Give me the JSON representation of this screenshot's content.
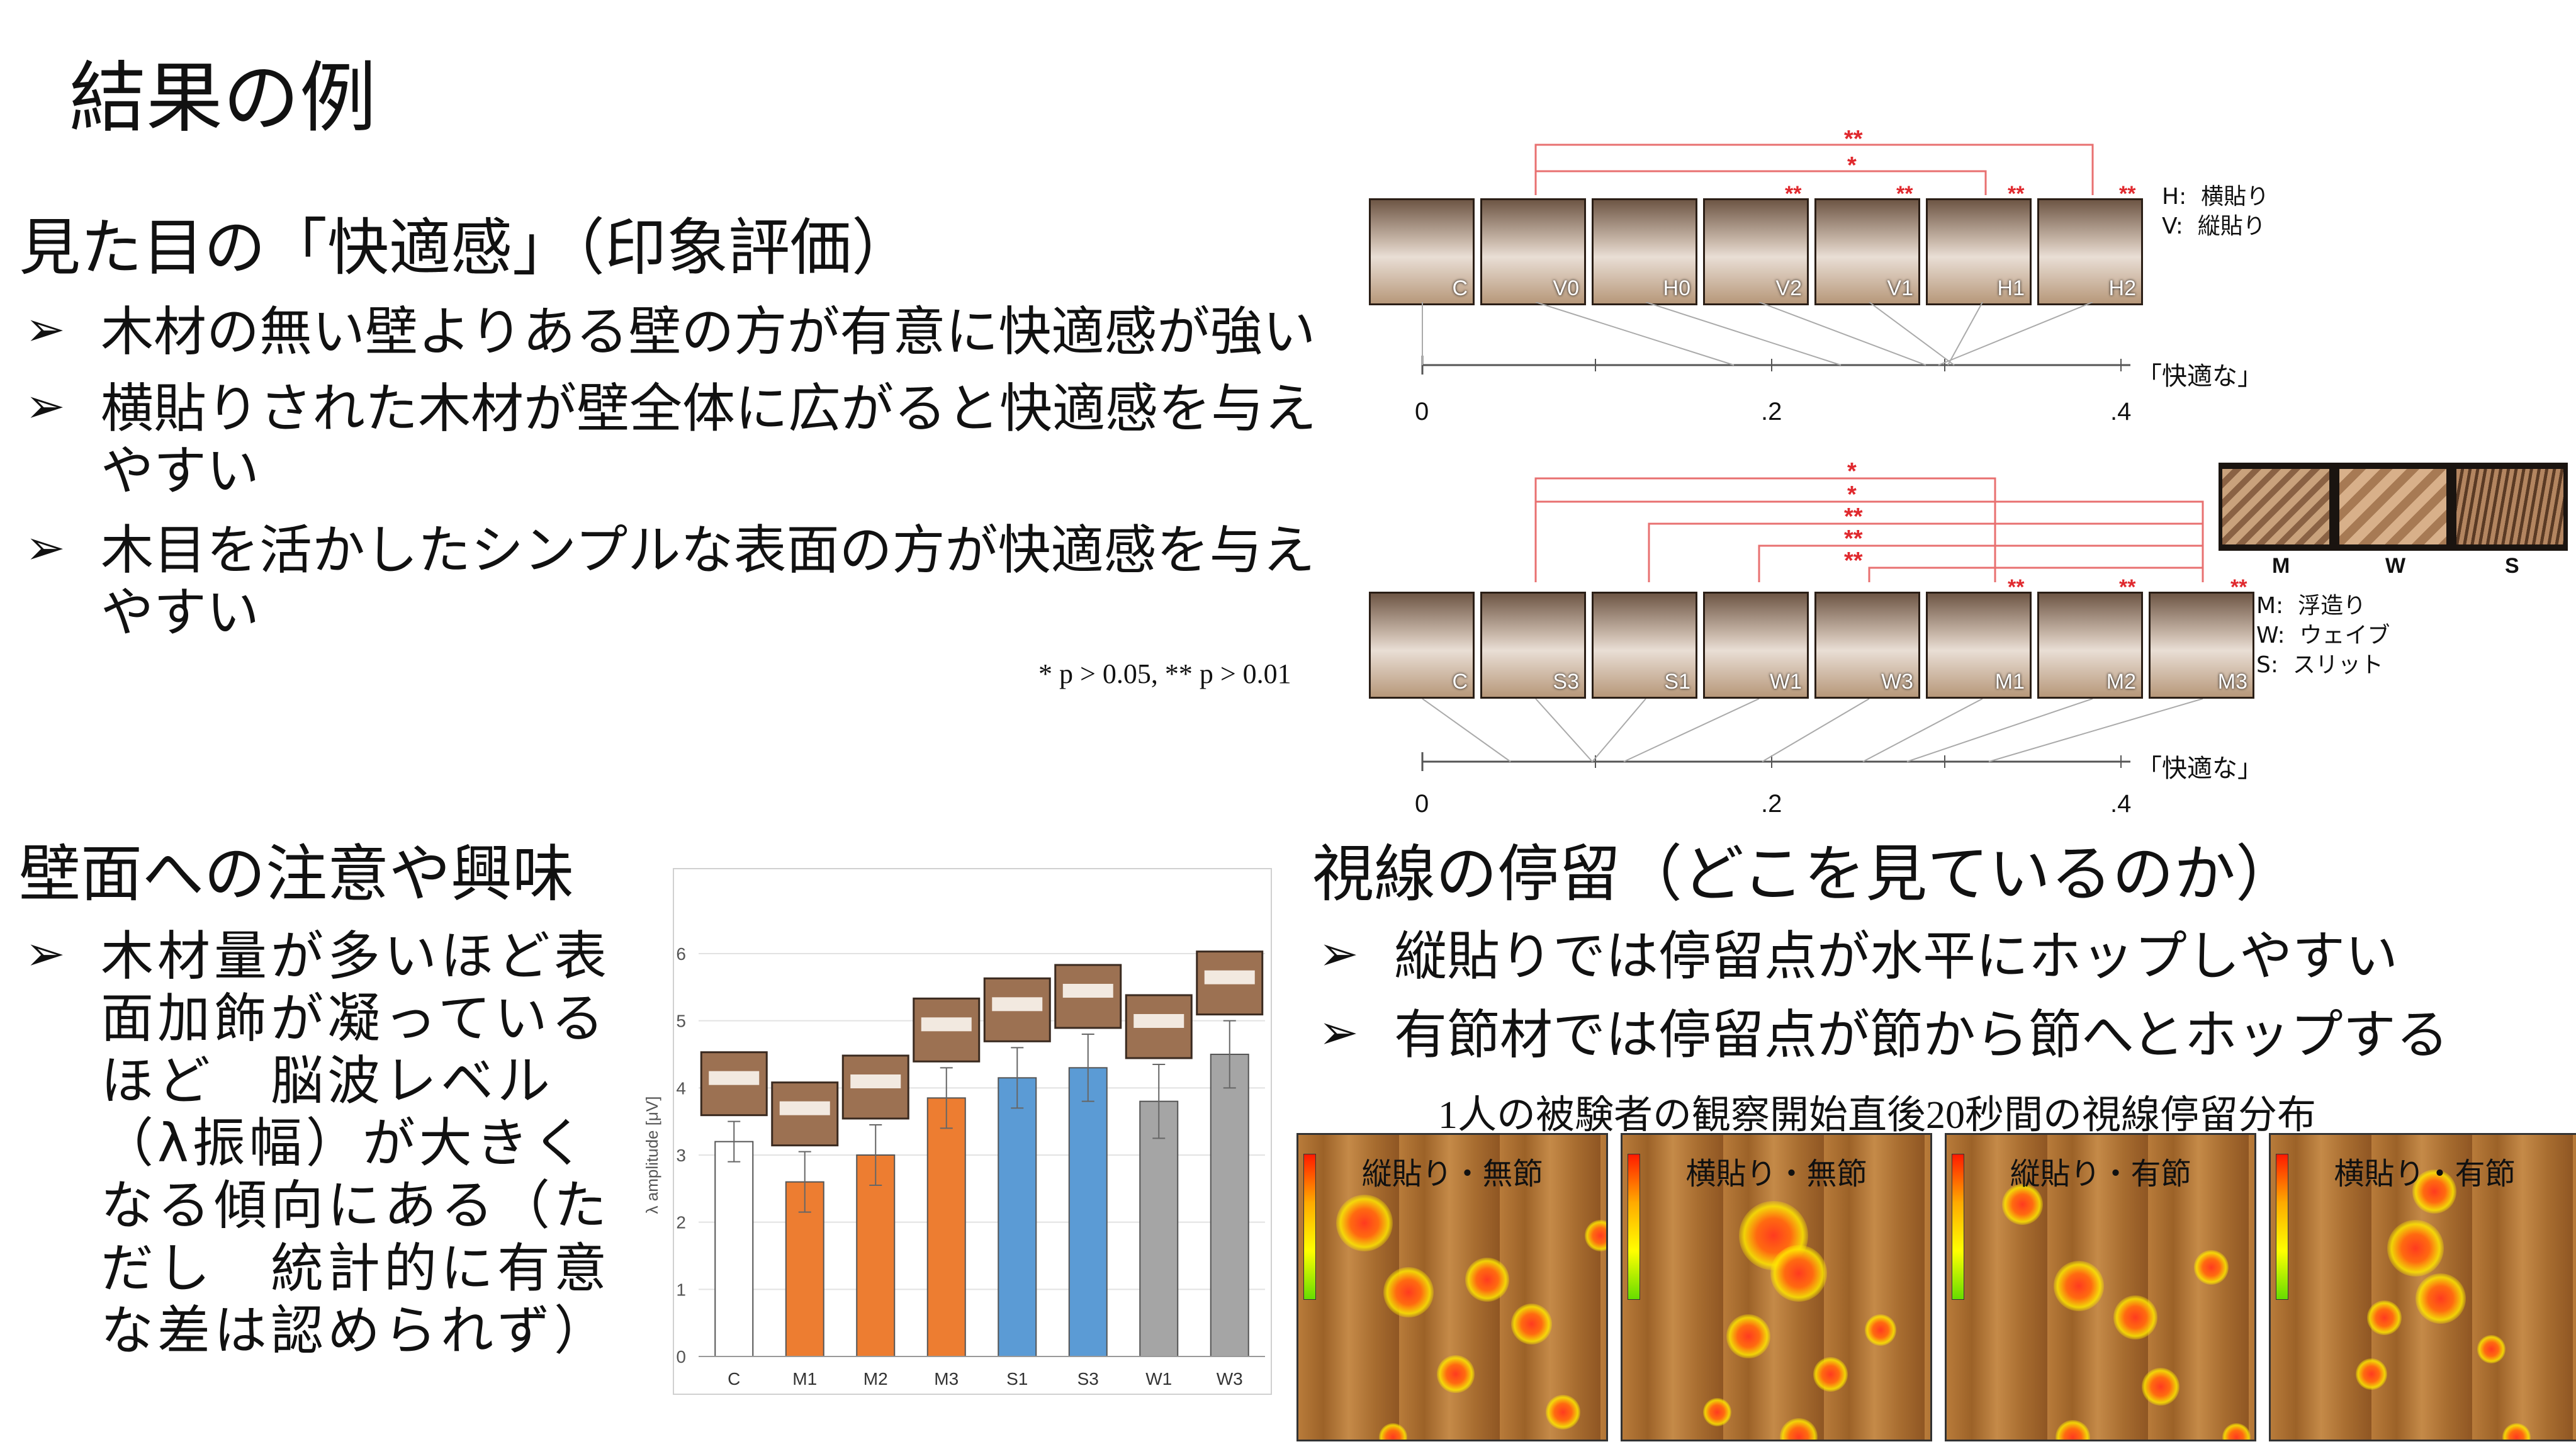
{
  "title": "結果の例",
  "section1": {
    "heading": "見た目の「快適感」（印象評価）",
    "bullets": [
      "木材の無い壁よりある壁の方が有意に快適感が強い",
      "横貼りされた木材が壁全体に広がると快適感を与えやすい",
      "木目を活かしたシンプルな表面の方が快適感を与えやすい"
    ],
    "footnote": "* p > 0.05, ** p > 0.01"
  },
  "top_panels": {
    "panels": [
      "C",
      "V0",
      "H0",
      "V2",
      "V1",
      "H1",
      "H2"
    ],
    "panel_stars": [
      "",
      "",
      "",
      "**",
      "**",
      "**",
      "**"
    ],
    "bracket_stars": [
      "**",
      "*"
    ],
    "legend": "H:  横貼り\nV:  縦貼り",
    "axis_ticks": [
      "0",
      ".2",
      ".4"
    ],
    "axis_label": "「快適な」"
  },
  "bottom_panels": {
    "panels": [
      "C",
      "S3",
      "S1",
      "W1",
      "W3",
      "M1",
      "M2",
      "M3"
    ],
    "panel_stars": [
      "",
      "",
      "",
      "",
      "",
      "**",
      "**",
      "**"
    ],
    "bracket_stars": [
      "*",
      "*",
      "**",
      "**",
      "**"
    ],
    "swatches": [
      "M",
      "W",
      "S"
    ],
    "legend": "M:  浮造り\nW:  ウェイブ\nS:  スリット",
    "axis_ticks": [
      "0",
      ".2",
      ".4"
    ],
    "axis_label": "「快適な」"
  },
  "section2": {
    "heading": "壁面への注意や興味",
    "bullet": "木材量が多いほど表面加飾が凝っているほど　脳波レベル（λ振幅）が大きくなる傾向にある（ただし　統計的に有意な差は認められず）"
  },
  "chart_data": {
    "type": "bar",
    "categories": [
      "C",
      "M1",
      "M2",
      "M3",
      "S1",
      "S3",
      "W1",
      "W3"
    ],
    "values": [
      3.2,
      2.6,
      3.0,
      3.85,
      4.15,
      4.3,
      3.8,
      4.5
    ],
    "errors": [
      0.3,
      0.45,
      0.45,
      0.45,
      0.45,
      0.5,
      0.55,
      0.5
    ],
    "colors": [
      "#ffffff",
      "#ed7d31",
      "#ed7d31",
      "#ed7d31",
      "#5b9bd5",
      "#5b9bd5",
      "#a5a5a5",
      "#a5a5a5"
    ],
    "ylabel": "λ amplitude [μV]",
    "yticks": [
      "0",
      "1",
      "2",
      "3",
      "4",
      "5",
      "6"
    ],
    "ylim": [
      0,
      6
    ]
  },
  "section3": {
    "heading": "視線の停留（どこを見ているのか）",
    "bullets": [
      "縦貼りでは停留点が水平にホップしやすい",
      "有節材では停留点が節から節へとホップする"
    ],
    "caption": "1人の被験者の観察開始直後20秒間の視線停留分布",
    "images": [
      "縦貼り・無節",
      "横貼り・無節",
      "縦貼り・有節",
      "横貼り・有節"
    ]
  }
}
